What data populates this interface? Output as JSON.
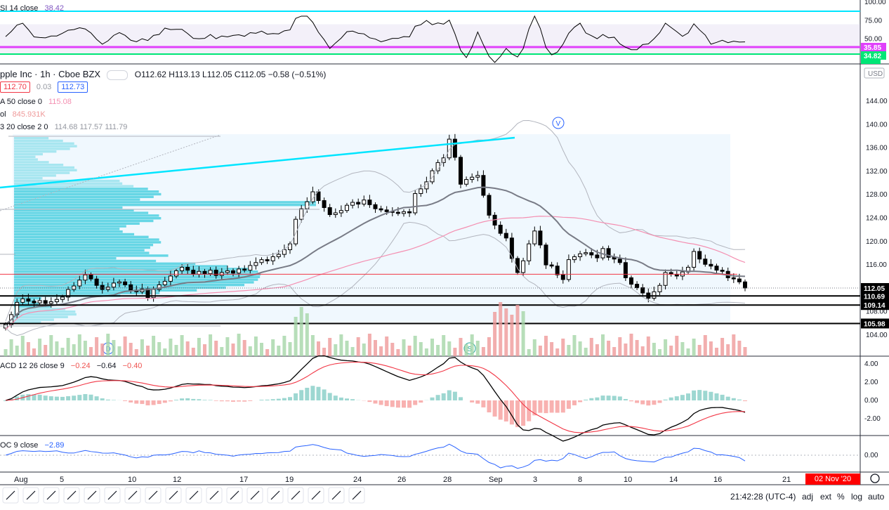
{
  "header": {
    "symbol": "pple Inc · 1h · Cboe BZX",
    "ohlc": "O112.62 H113.13 L112.05 C112.05 −0.58 (−0.51%)",
    "bid": "112.70",
    "spread": "0.03",
    "ask": "112.73"
  },
  "indicators": {
    "ma_label": "A 50 close 0",
    "ma_value": "115.08",
    "vol_label": "ol",
    "vol_value": "845.931K",
    "bb_label": "3 20 close 2 0",
    "bb_values": "114.68  117.57  111.79",
    "rsi_label": "SI 14 close",
    "rsi_value": "38.42",
    "macd_label": "ACD 12 26 close 9",
    "macd_v1": "−0.24",
    "macd_v2": "−0.64",
    "macd_v3": "−0.40",
    "roc_label": "OC 9 close",
    "roc_value": "−2.89"
  },
  "bottom_bar": {
    "time": "21:42:28 (UTC-4)",
    "adj": "adj",
    "ext": "ext",
    "pct": "%",
    "log": "log",
    "auto": "auto",
    "date_badge": "02 Nov '20  09:30"
  },
  "colors": {
    "up": "#26a69a",
    "down": "#ef5350",
    "bb": "#b2b5be",
    "ma": "#787b86",
    "ma50": "#f48fb1",
    "cyan": "#00e5ff",
    "red": "#f23645",
    "vp": "#4dd0e1"
  },
  "chart_data": {
    "type": "candlestick",
    "title": "pple Inc · 1h · Cboe BZX",
    "price_axis": {
      "ticks": [
        104,
        108,
        112,
        116,
        120,
        124,
        128,
        132,
        136,
        140,
        144
      ],
      "unit": "USD",
      "range": [
        102.4,
        147.8
      ]
    },
    "x_labels": [
      "Aug",
      "5",
      "10",
      "12",
      "17",
      "19",
      "24",
      "26",
      "28",
      "Sep",
      "3",
      "8",
      "10",
      "14",
      "16",
      "21"
    ],
    "price_labels": [
      {
        "value": 112.05,
        "text": "112.05"
      },
      {
        "value": 110.69,
        "text": "110.69"
      },
      {
        "value": 109.14,
        "text": "109.14"
      },
      {
        "value": 105.98,
        "text": "105.98"
      }
    ],
    "horizontal_lines": [
      {
        "value": 110.69,
        "color": "black"
      },
      {
        "value": 109.14,
        "color": "black"
      },
      {
        "value": 105.98,
        "color": "black"
      },
      {
        "value": 114.4,
        "color": "red"
      }
    ],
    "closes": [
      105.8,
      107.5,
      109.6,
      110.2,
      109.8,
      109.5,
      109.9,
      109.4,
      109.7,
      110.1,
      110.5,
      111.8,
      112.4,
      113.4,
      114.3,
      113.6,
      112.5,
      111.8,
      112.2,
      112.9,
      113.1,
      112.6,
      111.7,
      111.4,
      111.9,
      110.4,
      111.8,
      112.6,
      113.2,
      114.1,
      115.0,
      115.6,
      115.1,
      114.4,
      114.9,
      114.5,
      115.1,
      114.2,
      114.7,
      115.0,
      114.6,
      115.3,
      115.1,
      115.9,
      116.4,
      116.9,
      116.7,
      117.4,
      117.8,
      118.6,
      119.6,
      123.8,
      125.6,
      126.8,
      128.5,
      127.0,
      125.8,
      124.6,
      124.9,
      125.3,
      126.2,
      126.7,
      126.4,
      127.1,
      126.3,
      125.6,
      125.4,
      125.1,
      125.0,
      124.8,
      125.1,
      124.9,
      128.2,
      129.0,
      130.2,
      132.1,
      133.5,
      134.3,
      137.5,
      134.4,
      129.8,
      130.6,
      131.0,
      131.3,
      127.9,
      124.5,
      122.8,
      121.4,
      120.6,
      117.1,
      114.7,
      116.7,
      119.6,
      121.8,
      119.4,
      116.0,
      115.8,
      114.3,
      113.5,
      116.9,
      117.4,
      117.9,
      118.1,
      117.7,
      117.2,
      118.8,
      117.3,
      117.0,
      116.4,
      113.8,
      112.7,
      112.1,
      111.2,
      110.3,
      111.4,
      112.5,
      114.7,
      114.4,
      114.1,
      114.8,
      115.6,
      118.3,
      117.0,
      116.1,
      115.8,
      115.1,
      114.9,
      113.8,
      113.6,
      113.1,
      112.05
    ],
    "rsi": {
      "range": [
        0,
        100
      ],
      "ticks": [
        50.0,
        75.0,
        100.0
      ],
      "levels": [
        70,
        30
      ],
      "labels": [
        "35.85",
        "34.82"
      ],
      "last": 38.42
    },
    "macd": {
      "ticks": [
        -2.0,
        0.0,
        2.0,
        4.0
      ],
      "last_macd": -0.64,
      "last_signal": -0.4,
      "last_hist": -0.24
    },
    "roc": {
      "ticks": [
        0.0
      ],
      "last": -2.89
    }
  }
}
